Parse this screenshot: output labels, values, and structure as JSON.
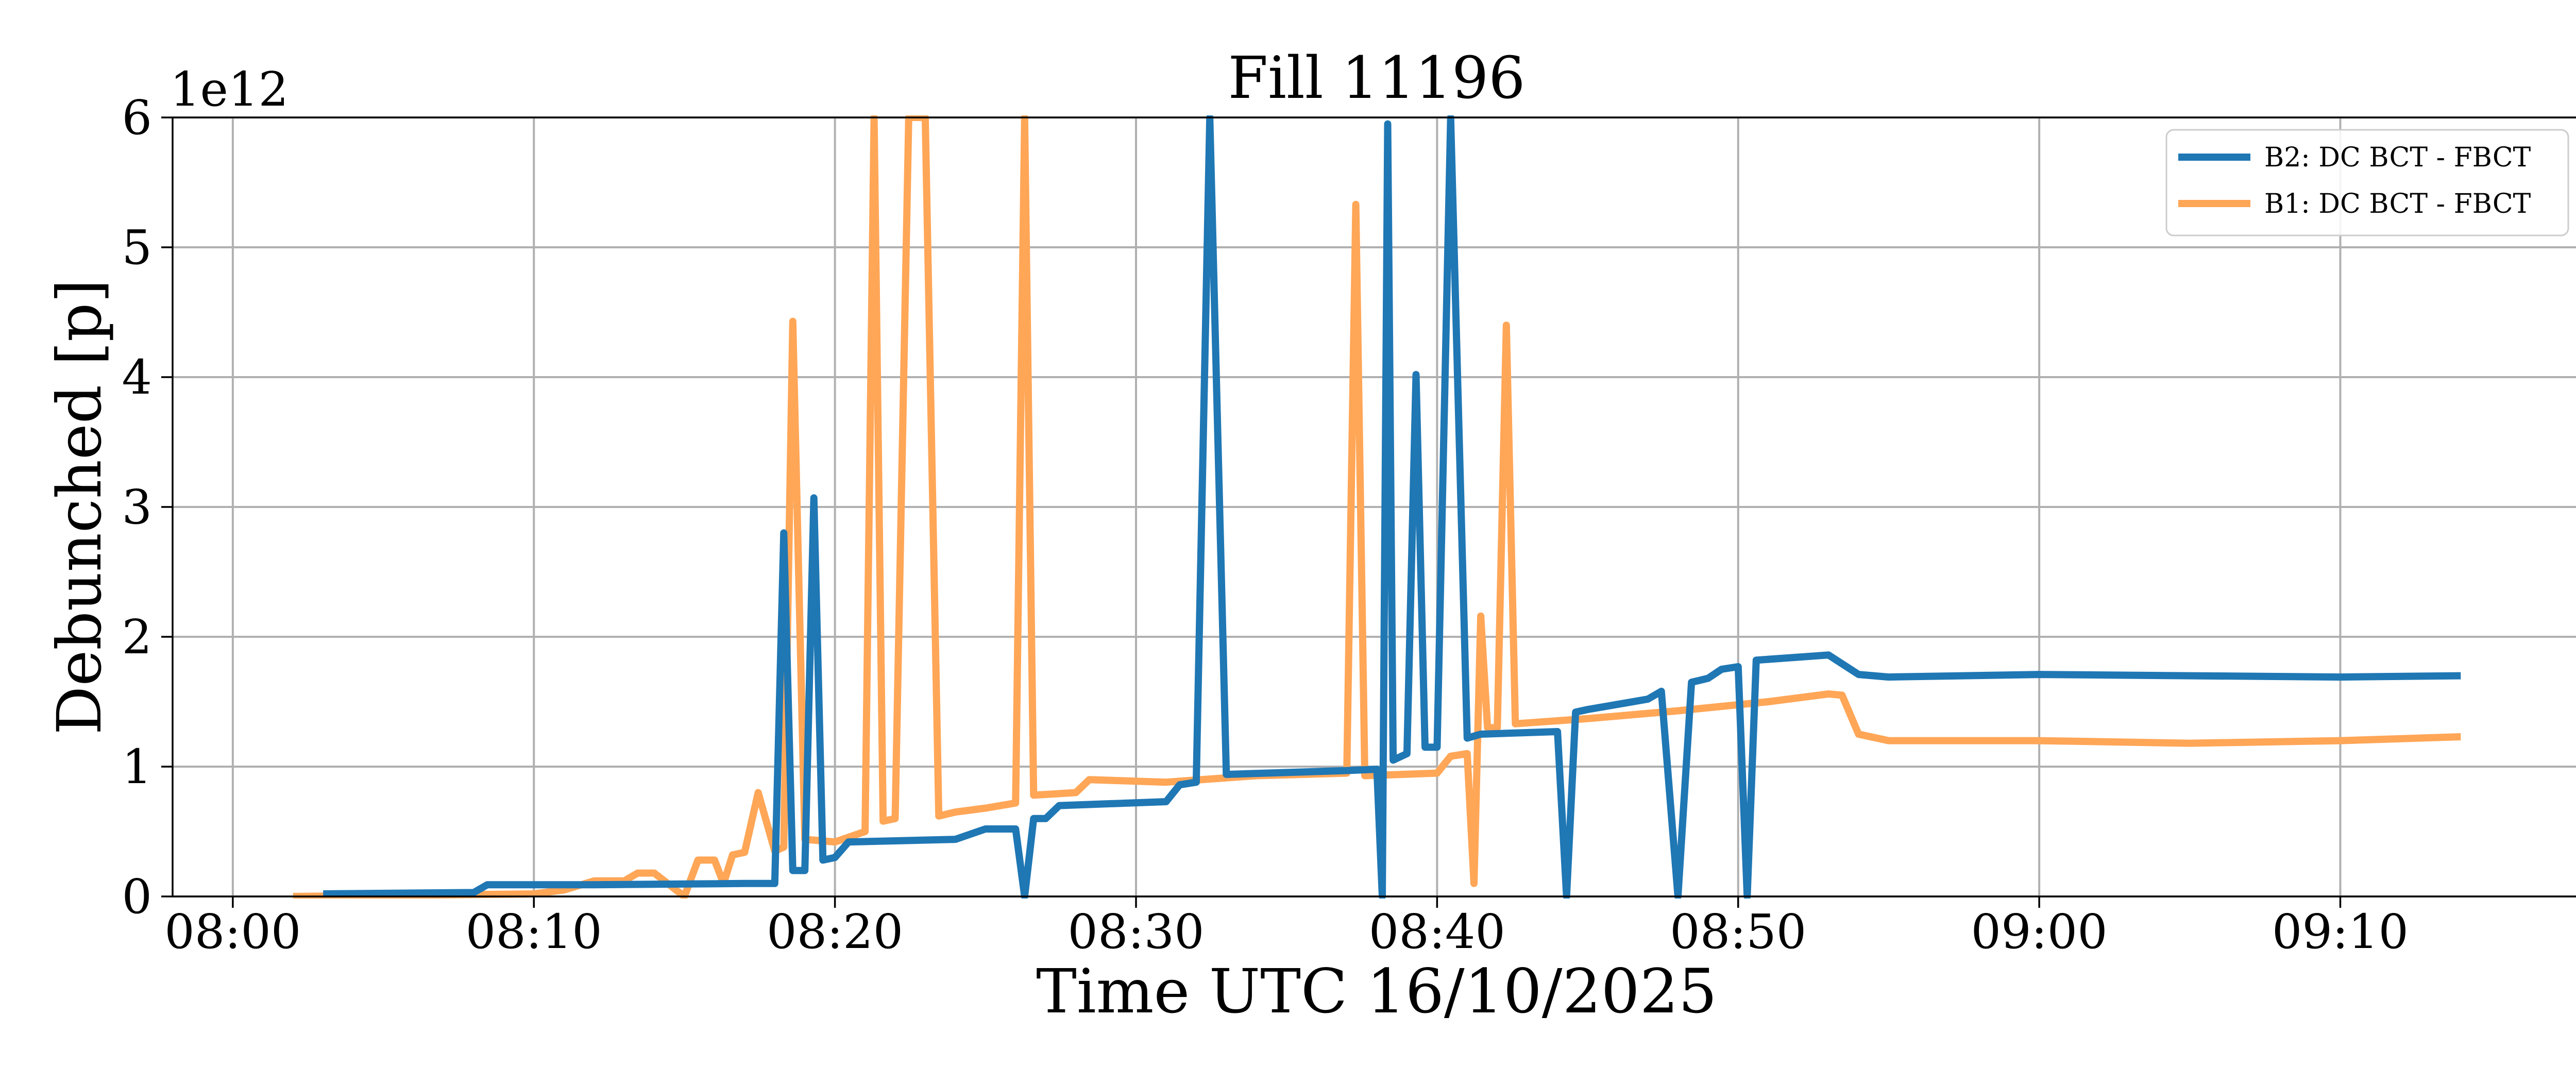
{
  "chart_data": {
    "type": "line",
    "title": "Fill 11196",
    "xlabel": "Time UTC 16/10/2025",
    "ylabel": "Debunched [p]",
    "y_offset_label": "1e12",
    "xlim": [
      "07:58",
      "09:18"
    ],
    "ylim": [
      0,
      6
    ],
    "x_ticks": [
      "08:00",
      "08:10",
      "08:20",
      "08:30",
      "08:40",
      "08:50",
      "09:00",
      "09:10"
    ],
    "y_ticks": [
      "0",
      "1",
      "2",
      "3",
      "4",
      "5",
      "6"
    ],
    "grid": true,
    "legend_position": "top-right",
    "series": [
      {
        "name": "B2: DC BCT - FBCT",
        "color": "#1f77b4",
        "points": [
          [
            "08:02",
            null
          ],
          [
            "08:03",
            0.02
          ],
          [
            "08:08",
            0.03
          ],
          [
            "08:08",
            0.09
          ],
          [
            "08:12",
            0.09
          ],
          [
            "08:17",
            0.1
          ],
          [
            "08:18",
            0.1
          ],
          [
            "08:18",
            2.8
          ],
          [
            "08:18",
            0.2
          ],
          [
            "08:19",
            0.2
          ],
          [
            "08:19",
            3.07
          ],
          [
            "08:19",
            0.28
          ],
          [
            "08:20",
            0.3
          ],
          [
            "08:20",
            0.42
          ],
          [
            "08:24",
            0.44
          ],
          [
            "08:25",
            0.52
          ],
          [
            "08:26",
            0.52
          ],
          [
            "08:26",
            0.0
          ],
          [
            "08:26",
            0.6
          ],
          [
            "08:27",
            0.6
          ],
          [
            "08:27",
            0.7
          ],
          [
            "08:31",
            0.73
          ],
          [
            "08:31",
            0.86
          ],
          [
            "08:32",
            0.88
          ],
          [
            "08:32",
            6.0
          ],
          [
            "08:33",
            0.94
          ],
          [
            "08:37",
            0.97
          ],
          [
            "08:38",
            0.98
          ],
          [
            "08:38",
            0.0
          ],
          [
            "08:38",
            5.95
          ],
          [
            "08:38",
            1.05
          ],
          [
            "08:38",
            1.07
          ],
          [
            "08:39",
            1.1
          ],
          [
            "08:39",
            4.02
          ],
          [
            "08:39",
            1.15
          ],
          [
            "08:40",
            1.15
          ],
          [
            "08:40",
            6.0
          ],
          [
            "08:41",
            1.22
          ],
          [
            "08:41",
            1.25
          ],
          [
            "08:44",
            1.27
          ],
          [
            "08:44",
            0.0
          ],
          [
            "08:44",
            1.42
          ],
          [
            "08:45",
            1.44
          ],
          [
            "08:47",
            1.52
          ],
          [
            "08:47",
            1.58
          ],
          [
            "08:48",
            0.0
          ],
          [
            "08:48",
            1.65
          ],
          [
            "08:49",
            1.68
          ],
          [
            "08:49",
            1.75
          ],
          [
            "08:50",
            1.77
          ],
          [
            "08:50",
            0.0
          ],
          [
            "08:50",
            1.82
          ],
          [
            "08:53",
            1.86
          ],
          [
            "08:54",
            1.71
          ],
          [
            "08:55",
            1.69
          ],
          [
            "09:00",
            1.71
          ],
          [
            "09:05",
            1.7
          ],
          [
            "09:10",
            1.69
          ],
          [
            "09:14",
            1.7
          ]
        ]
      },
      {
        "name": "B1: DC BCT - FBCT",
        "color": "#ffa657",
        "points": [
          [
            "08:02",
            0.0
          ],
          [
            "08:10",
            0.02
          ],
          [
            "08:11",
            0.05
          ],
          [
            "08:12",
            0.12
          ],
          [
            "08:13",
            0.12
          ],
          [
            "08:13",
            0.18
          ],
          [
            "08:14",
            0.18
          ],
          [
            "08:15",
            0.0
          ],
          [
            "08:15",
            0.28
          ],
          [
            "08:16",
            0.28
          ],
          [
            "08:16",
            0.1
          ],
          [
            "08:16",
            0.32
          ],
          [
            "08:17",
            0.34
          ],
          [
            "08:17",
            0.8
          ],
          [
            "08:18",
            0.35
          ],
          [
            "08:18",
            0.38
          ],
          [
            "08:18",
            4.43
          ],
          [
            "08:19",
            0.44
          ],
          [
            "08:20",
            0.42
          ],
          [
            "08:21",
            0.5
          ],
          [
            "08:21",
            6.0
          ],
          [
            "08:21",
            0.58
          ],
          [
            "08:22",
            0.6
          ],
          [
            "08:22",
            6.0
          ],
          [
            "08:23",
            6.0
          ],
          [
            "08:23",
            0.62
          ],
          [
            "08:24",
            0.65
          ],
          [
            "08:25",
            0.68
          ],
          [
            "08:26",
            0.72
          ],
          [
            "08:26",
            6.0
          ],
          [
            "08:26",
            0.78
          ],
          [
            "08:28",
            0.8
          ],
          [
            "08:28",
            0.9
          ],
          [
            "08:31",
            0.88
          ],
          [
            "08:34",
            0.93
          ],
          [
            "08:37",
            0.95
          ],
          [
            "08:37",
            5.33
          ],
          [
            "08:37",
            0.93
          ],
          [
            "08:40",
            0.95
          ],
          [
            "08:40",
            1.08
          ],
          [
            "08:41",
            1.1
          ],
          [
            "08:41",
            0.1
          ],
          [
            "08:41",
            2.16
          ],
          [
            "08:41",
            1.3
          ],
          [
            "08:42",
            1.3
          ],
          [
            "08:42",
            4.4
          ],
          [
            "08:42",
            1.33
          ],
          [
            "08:45",
            1.37
          ],
          [
            "08:48",
            1.43
          ],
          [
            "08:51",
            1.5
          ],
          [
            "08:53",
            1.56
          ],
          [
            "08:53",
            1.55
          ],
          [
            "08:54",
            1.25
          ],
          [
            "08:55",
            1.2
          ],
          [
            "09:00",
            1.2
          ],
          [
            "09:05",
            1.18
          ],
          [
            "09:10",
            1.2
          ],
          [
            "09:14",
            1.23
          ]
        ]
      }
    ]
  }
}
